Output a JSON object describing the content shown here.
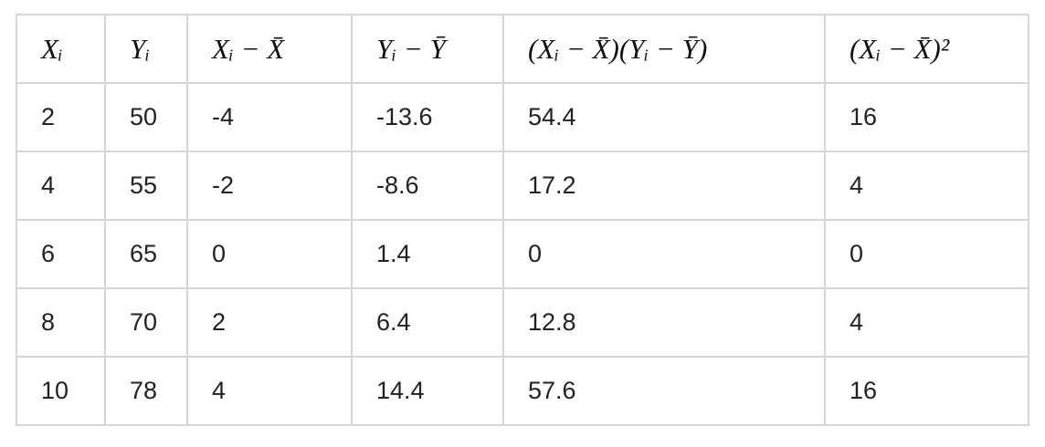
{
  "table": {
    "header": [
      "Xᵢ",
      "Yᵢ",
      "Xᵢ − X̄",
      "Yᵢ − Ȳ",
      "(Xᵢ − X̄)(Yᵢ − Ȳ)",
      "(Xᵢ − X̄)²"
    ],
    "rows": [
      [
        2,
        50,
        -4,
        -13.6,
        54.4,
        16
      ],
      [
        4,
        55,
        -2,
        -8.6,
        17.2,
        4
      ],
      [
        6,
        65,
        0,
        1.4,
        0,
        0
      ],
      [
        8,
        70,
        2,
        6.4,
        12.8,
        4
      ],
      [
        10,
        78,
        4,
        14.4,
        57.6,
        16
      ]
    ]
  }
}
